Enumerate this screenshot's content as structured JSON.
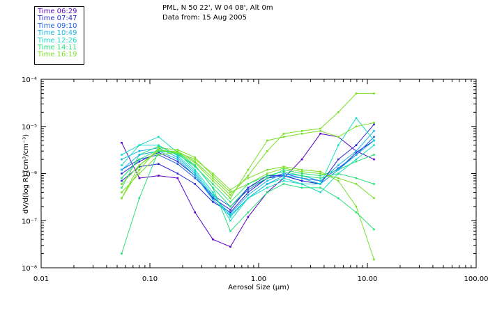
{
  "header": {
    "location": "PML, N 50 22', W 04 08', Alt 0m",
    "date_line": "Data from: 15 Aug 2005"
  },
  "legend": [
    {
      "label": "Time 06:29",
      "color": "#5a00c8"
    },
    {
      "label": "Time 07:47",
      "color": "#2828d2"
    },
    {
      "label": "Time 09:10",
      "color": "#2060e0"
    },
    {
      "label": "Time 10:49",
      "color": "#18b4e6"
    },
    {
      "label": "Time 12:26",
      "color": "#18dcc8"
    },
    {
      "label": "Time 14:11",
      "color": "#28e07a"
    },
    {
      "label": "Time 16:19",
      "color": "#78e028"
    }
  ],
  "chart_data": {
    "type": "line",
    "title": "PML, N 50 22', W 04 08', Alt 0m",
    "xlabel": "Aerosol Size (µm)",
    "ylabel": "dV/d(log R) (cm³/cm⁻³)",
    "xscale": "log",
    "yscale": "log",
    "xlim": [
      0.01,
      100
    ],
    "ylim": [
      1e-08,
      0.0001
    ],
    "x_ticks": [
      "0.01",
      "0.10",
      "1.00",
      "10.00",
      "100.00"
    ],
    "y_ticks": [
      "10⁻⁸",
      "10⁻⁷",
      "10⁻⁶",
      "10⁻⁵",
      "10⁻⁴"
    ],
    "x": [
      0.055,
      0.08,
      0.12,
      0.18,
      0.26,
      0.38,
      0.55,
      0.8,
      1.2,
      1.7,
      2.5,
      3.7,
      5.4,
      7.9,
      11.5
    ],
    "series": [
      {
        "name": "Time 06:29",
        "color": "#5a00c8",
        "values": [
          4.5e-06,
          8e-07,
          9e-07,
          8e-07,
          1.5e-07,
          4e-08,
          2.8e-08,
          1.2e-07,
          4e-07,
          8e-07,
          2e-06,
          7e-06,
          6e-06,
          3e-06,
          2e-06
        ]
      },
      {
        "name": "Time 07:47",
        "color": "#2828d2",
        "values": [
          7e-07,
          1.4e-06,
          1.6e-06,
          1e-06,
          6e-07,
          2.5e-07,
          1.5e-07,
          4e-07,
          8e-07,
          9e-07,
          7e-07,
          6e-07,
          1.2e-06,
          2.8e-06,
          5e-06
        ]
      },
      {
        "name": "Time 09:10",
        "color": "#2060e0",
        "values": [
          1.2e-06,
          2e-06,
          2.5e-06,
          1.6e-06,
          8e-07,
          3.5e-07,
          2e-07,
          4.5e-07,
          8e-07,
          1e-06,
          8e-07,
          7e-07,
          1.3e-06,
          2.5e-06,
          6e-06
        ]
      },
      {
        "name": "Time 10:49",
        "color": "#18b4e6",
        "values": [
          2e-06,
          3e-06,
          3.5e-06,
          2.2e-06,
          1e-06,
          3.2e-07,
          1.4e-07,
          3.5e-07,
          7e-07,
          1e-06,
          9e-07,
          7e-07,
          1.5e-06,
          3e-06,
          8e-06
        ]
      },
      {
        "name": "Time 12:26",
        "color": "#18dcc8",
        "values": [
          1.5e-06,
          4e-06,
          6e-06,
          2.8e-06,
          1.2e-06,
          4e-07,
          1e-07,
          3e-07,
          6e-07,
          8e-07,
          6e-07,
          4e-07,
          1e-06,
          2e-06,
          4e-06
        ]
      },
      {
        "name": "Time 14:11",
        "color": "#28e07a",
        "values": [
          5e-07,
          2.5e-06,
          3.8e-06,
          2.5e-06,
          1.5e-06,
          5e-07,
          2e-07,
          5e-07,
          8e-07,
          1.2e-06,
          1e-06,
          9e-07,
          1.2e-06,
          1.8e-06,
          2.5e-06
        ]
      },
      {
        "name": "Time 16:19",
        "color": "#78e028",
        "values": [
          3e-07,
          1.2e-06,
          3.5e-06,
          3.2e-06,
          2.2e-06,
          9e-07,
          4e-07,
          6e-07,
          1e-06,
          1.3e-06,
          1.1e-06,
          1e-06,
          8e-07,
          6e-07,
          3e-07
        ]
      },
      {
        "name": "",
        "color": "#2828d2",
        "values": [
          1e-06,
          1.8e-06,
          2.8e-06,
          1.8e-06,
          9e-07,
          3e-07,
          1.7e-07,
          5e-07,
          9e-07,
          9e-07,
          7e-07,
          6e-07,
          2e-06,
          4e-06,
          1.1e-05
        ]
      },
      {
        "name": "",
        "color": "#18b4e6",
        "values": [
          1.2e-06,
          2.5e-06,
          3e-06,
          2e-06,
          9e-07,
          2.8e-07,
          1.3e-07,
          3e-07,
          6e-07,
          9e-07,
          8e-07,
          6e-07,
          1.2e-06,
          2.5e-06,
          5e-06
        ]
      },
      {
        "name": "",
        "color": "#18dcc8",
        "values": [
          2.5e-06,
          4e-06,
          4e-06,
          2.4e-06,
          1.1e-06,
          3.5e-07,
          1.2e-07,
          3e-07,
          5e-07,
          7e-07,
          6e-07,
          6e-07,
          4e-06,
          1.5e-05,
          5e-06
        ]
      },
      {
        "name": "",
        "color": "#28e07a",
        "values": [
          8e-07,
          2e-06,
          3.2e-06,
          2.6e-06,
          1.4e-06,
          6e-07,
          2.5e-07,
          6e-07,
          9e-07,
          1.1e-06,
          9e-07,
          8e-07,
          1e-06,
          8e-07,
          6e-07
        ]
      },
      {
        "name": "",
        "color": "#78e028",
        "values": [
          6e-07,
          1.5e-06,
          3e-06,
          3e-06,
          1.8e-06,
          8e-07,
          3.5e-07,
          9e-07,
          3e-06,
          7e-06,
          8e-06,
          9e-06,
          2e-05,
          5e-05,
          5e-05
        ]
      },
      {
        "name": "",
        "color": "#78e028",
        "values": [
          4e-07,
          1e-06,
          2.5e-06,
          2.8e-06,
          2e-06,
          1e-06,
          4.5e-07,
          8e-07,
          1.2e-06,
          1.4e-06,
          1.2e-06,
          1.1e-06,
          7e-07,
          2e-07,
          1.5e-08
        ]
      },
      {
        "name": "",
        "color": "#28e07a",
        "values": [
          2e-08,
          3e-07,
          3e-06,
          2.8e-06,
          1.5e-06,
          5e-07,
          6e-08,
          1.5e-07,
          4e-07,
          6e-07,
          5e-07,
          5e-07,
          3e-07,
          1.5e-07,
          6.5e-08
        ]
      },
      {
        "name": "",
        "color": "#78e028",
        "values": [
          3e-07,
          1.5e-06,
          3.2e-06,
          2.8e-06,
          1.7e-06,
          7e-07,
          3e-07,
          1.2e-06,
          5e-06,
          6e-06,
          7e-06,
          8e-06,
          6e-06,
          1e-05,
          1.2e-05
        ]
      }
    ]
  }
}
